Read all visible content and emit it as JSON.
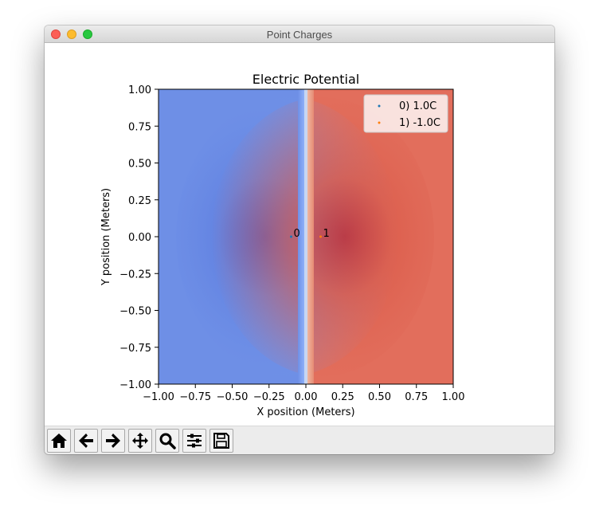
{
  "window": {
    "title": "Point Charges"
  },
  "toolbar": {
    "buttons": [
      {
        "name": "home-button",
        "icon": "home-icon"
      },
      {
        "name": "back-button",
        "icon": "arrow-left-icon"
      },
      {
        "name": "forward-button",
        "icon": "arrow-right-icon"
      },
      {
        "name": "pan-button",
        "icon": "move-icon"
      },
      {
        "name": "zoom-button",
        "icon": "search-icon"
      },
      {
        "name": "configure-subplots-button",
        "icon": "sliders-icon"
      },
      {
        "name": "save-button",
        "icon": "floppy-disk-icon"
      }
    ]
  },
  "chart_data": {
    "type": "heatmap",
    "title": "Electric Potential",
    "xlabel": "X position (Meters)",
    "ylabel": "Y position (Meters)",
    "xlim": [
      -1.0,
      1.0
    ],
    "ylim": [
      -1.0,
      1.0
    ],
    "xticks": [
      -1.0,
      -0.75,
      -0.5,
      -0.25,
      0.0,
      0.25,
      0.5,
      0.75,
      1.0
    ],
    "xtick_labels": [
      "−1.00",
      "−0.75",
      "−0.50",
      "−0.25",
      "0.00",
      "0.25",
      "0.50",
      "0.75",
      "1.00"
    ],
    "yticks": [
      1.0,
      0.75,
      0.5,
      0.25,
      0.0,
      -0.25,
      -0.5,
      -0.75,
      -1.0
    ],
    "ytick_labels": [
      "1.00",
      "0.75",
      "0.50",
      "0.25",
      "0.00",
      "−0.25",
      "−0.50",
      "−0.75",
      "−1.00"
    ],
    "colormap": "coolwarm",
    "colors": {
      "negative": "#6e8fe6",
      "positive": "#e26e5c",
      "neutral": "#8eb0f9"
    },
    "charges": [
      {
        "label": "0",
        "x": -0.1,
        "y": 0.0,
        "charge": 1.0,
        "color": "#1f77b4"
      },
      {
        "label": "1",
        "x": 0.1,
        "y": 0.0,
        "charge": -1.0,
        "color": "#ff7f0e"
      }
    ],
    "legend": {
      "placement": "top-right",
      "entries": [
        "0) 1.0C",
        "1) -1.0C"
      ]
    }
  }
}
